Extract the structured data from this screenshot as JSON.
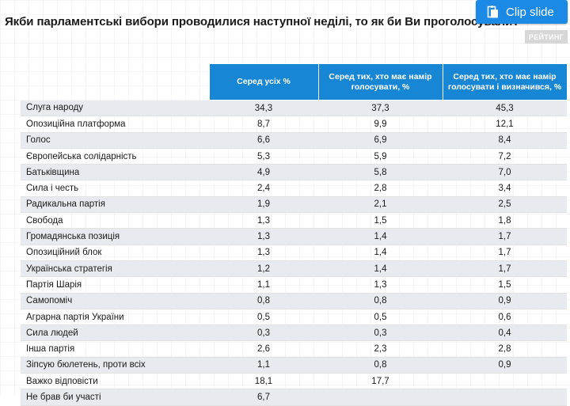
{
  "header": {
    "title": "Якби парламентські вибори проводилися наступної неділі, то як би Ви проголосували?",
    "clip_button": "Clip slide",
    "badge": "РЕЙТИНГ"
  },
  "colors": {
    "accent": "#1787d5",
    "clip_button": "#1b8ae6",
    "row_shade": "#e7ebf0"
  },
  "icons": {
    "clip": "clip-icon"
  },
  "chart_data": {
    "type": "table",
    "title": "Якби парламентські вибори проводилися наступної неділі, то як би Ви проголосували?",
    "columns": [
      "",
      "Серед усіх %",
      "Серед тих, хто має намір голосувати, %",
      "Серед тих, хто має намір голосувати і визначився, %"
    ],
    "rows": [
      [
        "Слуга народу",
        "34,3",
        "37,3",
        "45,3"
      ],
      [
        "Опозиційна платформа",
        "8,7",
        "9,9",
        "12,1"
      ],
      [
        "Голос",
        "6,6",
        "6,9",
        "8,4"
      ],
      [
        "Європейська солідарність",
        "5,3",
        "5,9",
        "7,2"
      ],
      [
        "Батьківщина",
        "4,9",
        "5,8",
        "7,0"
      ],
      [
        "Сила і честь",
        "2,4",
        "2,8",
        "3,4"
      ],
      [
        "Радикальна партія",
        "1,9",
        "2,1",
        "2,5"
      ],
      [
        "Свобода",
        "1,3",
        "1,5",
        "1,8"
      ],
      [
        "Громадянська позиція",
        "1,3",
        "1,4",
        "1,7"
      ],
      [
        "Опозиційний блок",
        "1,3",
        "1,4",
        "1,7"
      ],
      [
        "Українська стратегія",
        "1,2",
        "1,4",
        "1,7"
      ],
      [
        "Партія Шарія",
        "1,1",
        "1,3",
        "1,5"
      ],
      [
        "Самопоміч",
        "0,8",
        "0,8",
        "0,9"
      ],
      [
        "Аграрна партія України",
        "0,5",
        "0,5",
        "0,6"
      ],
      [
        "Сила людей",
        "0,3",
        "0,3",
        "0,4"
      ],
      [
        "Інша партія",
        "2,6",
        "2,3",
        "2,8"
      ],
      [
        "Зіпсую бюлетень, проти всіх",
        "1,1",
        "0,8",
        "0,9"
      ],
      [
        "Важко відповісти",
        "18,1",
        "17,7",
        ""
      ],
      [
        "Не брав би участі",
        "6,7",
        "",
        ""
      ]
    ]
  }
}
